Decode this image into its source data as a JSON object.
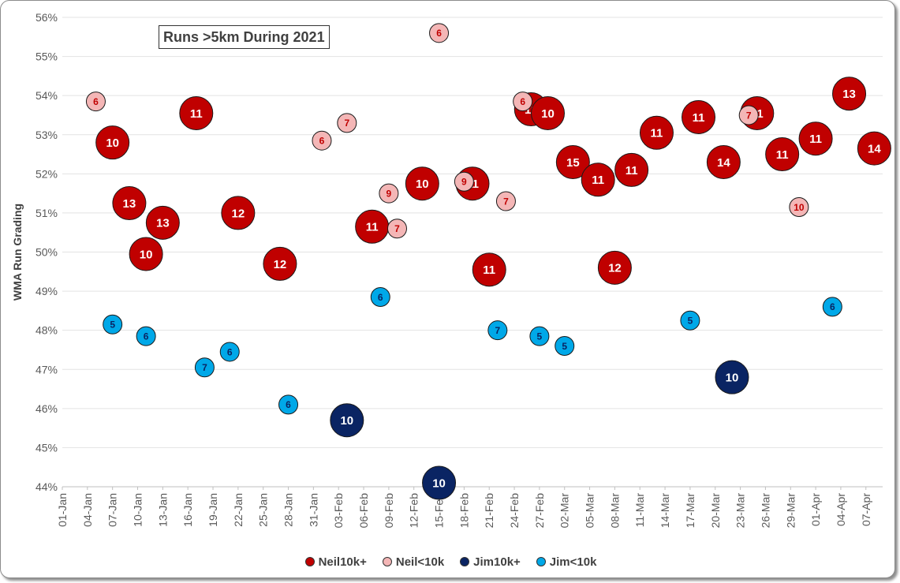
{
  "chart_data": {
    "type": "scatter",
    "title": "Runs >5km During 2021",
    "ylabel": "WMA Run Grading",
    "xlabel": "",
    "x_type": "date",
    "xlim": [
      "01-Jan",
      "09-Apr"
    ],
    "ylim": [
      44,
      56
    ],
    "x_ticks": [
      "01-Jan",
      "04-Jan",
      "07-Jan",
      "10-Jan",
      "13-Jan",
      "16-Jan",
      "19-Jan",
      "22-Jan",
      "25-Jan",
      "28-Jan",
      "31-Jan",
      "03-Feb",
      "06-Feb",
      "09-Feb",
      "12-Feb",
      "15-Feb",
      "18-Feb",
      "21-Feb",
      "24-Feb",
      "27-Feb",
      "02-Mar",
      "05-Mar",
      "08-Mar",
      "11-Mar",
      "14-Mar",
      "17-Mar",
      "20-Mar",
      "23-Mar",
      "26-Mar",
      "29-Mar",
      "01-Apr",
      "04-Apr",
      "07-Apr"
    ],
    "y_ticks": [
      "44%",
      "45%",
      "46%",
      "47%",
      "48%",
      "49%",
      "50%",
      "51%",
      "52%",
      "53%",
      "54%",
      "55%",
      "56%"
    ],
    "grid": "horizontal",
    "legend_position": "bottom",
    "series": [
      {
        "name": "Neil10k+",
        "color": "#c00000",
        "points": [
          {
            "x": "07-Jan",
            "y": 52.8,
            "label": "10"
          },
          {
            "x": "09-Jan",
            "y": 51.25,
            "label": "13"
          },
          {
            "x": "11-Jan",
            "y": 49.95,
            "label": "10"
          },
          {
            "x": "13-Jan",
            "y": 50.75,
            "label": "13"
          },
          {
            "x": "17-Jan",
            "y": 53.55,
            "label": "11"
          },
          {
            "x": "22-Jan",
            "y": 51.0,
            "label": "12"
          },
          {
            "x": "27-Jan",
            "y": 49.7,
            "label": "12"
          },
          {
            "x": "07-Feb",
            "y": 50.65,
            "label": "11"
          },
          {
            "x": "13-Feb",
            "y": 51.75,
            "label": "10"
          },
          {
            "x": "19-Feb",
            "y": 51.75,
            "label": "11"
          },
          {
            "x": "21-Feb",
            "y": 49.55,
            "label": "11"
          },
          {
            "x": "26-Feb",
            "y": 53.65,
            "label": "10"
          },
          {
            "x": "28-Feb",
            "y": 53.55,
            "label": "10"
          },
          {
            "x": "03-Mar",
            "y": 52.3,
            "label": "15"
          },
          {
            "x": "06-Mar",
            "y": 51.85,
            "label": "11"
          },
          {
            "x": "08-Mar",
            "y": 49.6,
            "label": "12"
          },
          {
            "x": "10-Mar",
            "y": 52.1,
            "label": "11"
          },
          {
            "x": "13-Mar",
            "y": 53.05,
            "label": "11"
          },
          {
            "x": "18-Mar",
            "y": 53.45,
            "label": "11"
          },
          {
            "x": "21-Mar",
            "y": 52.3,
            "label": "14"
          },
          {
            "x": "25-Mar",
            "y": 53.55,
            "label": "11"
          },
          {
            "x": "28-Mar",
            "y": 52.5,
            "label": "11"
          },
          {
            "x": "01-Apr",
            "y": 52.9,
            "label": "11"
          },
          {
            "x": "05-Apr",
            "y": 54.05,
            "label": "13"
          },
          {
            "x": "08-Apr",
            "y": 52.65,
            "label": "14"
          }
        ]
      },
      {
        "name": "Neil<10k",
        "color": "#f4b6b6",
        "points": [
          {
            "x": "05-Jan",
            "y": 53.85,
            "label": "6"
          },
          {
            "x": "01-Feb",
            "y": 52.85,
            "label": "6"
          },
          {
            "x": "04-Feb",
            "y": 53.3,
            "label": "7"
          },
          {
            "x": "09-Feb",
            "y": 51.5,
            "label": "9"
          },
          {
            "x": "10-Feb",
            "y": 50.6,
            "label": "7"
          },
          {
            "x": "15-Feb",
            "y": 55.6,
            "label": "6"
          },
          {
            "x": "18-Feb",
            "y": 51.8,
            "label": "9"
          },
          {
            "x": "23-Feb",
            "y": 51.3,
            "label": "7"
          },
          {
            "x": "25-Feb",
            "y": 53.85,
            "label": "6"
          },
          {
            "x": "24-Mar",
            "y": 53.5,
            "label": "7"
          },
          {
            "x": "30-Mar",
            "y": 51.15,
            "label": "10"
          }
        ]
      },
      {
        "name": "Jim10k+",
        "color": "#0a2463",
        "points": [
          {
            "x": "04-Feb",
            "y": 45.7,
            "label": "10"
          },
          {
            "x": "15-Feb",
            "y": 44.1,
            "label": "10"
          },
          {
            "x": "22-Mar",
            "y": 46.8,
            "label": "10"
          }
        ]
      },
      {
        "name": "Jim<10k",
        "color": "#00a8e8",
        "points": [
          {
            "x": "07-Jan",
            "y": 48.15,
            "label": "5"
          },
          {
            "x": "11-Jan",
            "y": 47.85,
            "label": "6"
          },
          {
            "x": "18-Jan",
            "y": 47.05,
            "label": "7"
          },
          {
            "x": "21-Jan",
            "y": 47.45,
            "label": "6"
          },
          {
            "x": "28-Jan",
            "y": 46.1,
            "label": "6"
          },
          {
            "x": "08-Feb",
            "y": 48.85,
            "label": "6"
          },
          {
            "x": "22-Feb",
            "y": 48.0,
            "label": "7"
          },
          {
            "x": "27-Feb",
            "y": 47.85,
            "label": "5"
          },
          {
            "x": "02-Mar",
            "y": 47.6,
            "label": "5"
          },
          {
            "x": "17-Mar",
            "y": 48.25,
            "label": "5"
          },
          {
            "x": "03-Apr",
            "y": 48.6,
            "label": "6"
          }
        ]
      }
    ]
  }
}
